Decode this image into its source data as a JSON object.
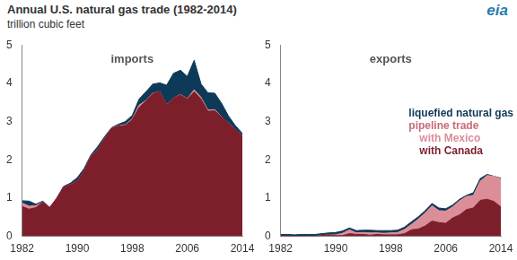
{
  "title": "Annual U.S. natural gas trade (1982-2014)",
  "subtitle": "trillion cubic feet",
  "logo": "eia",
  "legend_heading": "pipeline trade",
  "chart_data": [
    {
      "type": "area",
      "title": "imports",
      "stacked": true,
      "grid": false,
      "x": [
        1982,
        1983,
        1984,
        1985,
        1986,
        1987,
        1988,
        1989,
        1990,
        1991,
        1992,
        1993,
        1994,
        1995,
        1996,
        1997,
        1998,
        1999,
        2000,
        2001,
        2002,
        2003,
        2004,
        2005,
        2006,
        2007,
        2008,
        2009,
        2010,
        2011,
        2012,
        2013,
        2014
      ],
      "xlim": [
        1982,
        2014
      ],
      "xticks": [
        1982,
        1990,
        1998,
        2006,
        2014
      ],
      "ylim": [
        0,
        5
      ],
      "yticks": [
        0,
        1,
        2,
        3,
        4,
        5
      ],
      "series": [
        {
          "name": "with Canada",
          "color": "#7d1f2b",
          "values": [
            0.78,
            0.71,
            0.75,
            0.9,
            0.75,
            0.99,
            1.28,
            1.35,
            1.45,
            1.71,
            2.09,
            2.27,
            2.56,
            2.82,
            2.88,
            2.9,
            3.05,
            3.37,
            3.54,
            3.73,
            3.78,
            3.44,
            3.61,
            3.7,
            3.59,
            3.78,
            3.59,
            3.27,
            3.28,
            3.12,
            2.96,
            2.79,
            2.63
          ]
        },
        {
          "name": "with Mexico",
          "color": "#dc8e98",
          "values": [
            0.09,
            0.08,
            0.05,
            0,
            0,
            0,
            0,
            0,
            0,
            0,
            0,
            0,
            0,
            0,
            0.01,
            0.02,
            0.02,
            0.06,
            0.01,
            0.01,
            0,
            0,
            0,
            0.01,
            0.01,
            0.05,
            0.04,
            0.03,
            0.03,
            0,
            0,
            0,
            0
          ]
        },
        {
          "name": "liquefied natural gas",
          "color": "#0e3a5a",
          "values": [
            0.06,
            0.13,
            0.04,
            0.02,
            0,
            0,
            0.02,
            0.04,
            0.08,
            0.06,
            0.04,
            0.08,
            0.05,
            0.02,
            0.04,
            0.08,
            0.09,
            0.16,
            0.23,
            0.24,
            0.23,
            0.51,
            0.65,
            0.63,
            0.58,
            0.77,
            0.35,
            0.45,
            0.43,
            0.35,
            0.18,
            0.1,
            0.06
          ]
        }
      ]
    },
    {
      "type": "area",
      "title": "exports",
      "stacked": true,
      "grid": false,
      "legend": "top-right",
      "x": [
        1982,
        1983,
        1984,
        1985,
        1986,
        1987,
        1988,
        1989,
        1990,
        1991,
        1992,
        1993,
        1994,
        1995,
        1996,
        1997,
        1998,
        1999,
        2000,
        2001,
        2002,
        2003,
        2004,
        2005,
        2006,
        2007,
        2008,
        2009,
        2010,
        2011,
        2012,
        2013,
        2014
      ],
      "xlim": [
        1982,
        2014
      ],
      "xticks": [
        1982,
        1990,
        1998,
        2006,
        2014
      ],
      "ylim": [
        0,
        5
      ],
      "yticks": [
        0,
        1,
        2,
        3,
        4,
        5
      ],
      "series": [
        {
          "name": "with Canada",
          "color": "#7d1f2b",
          "values": [
            0,
            0,
            0,
            0,
            0,
            0,
            0.02,
            0.04,
            0.02,
            0.02,
            0.07,
            0.05,
            0.05,
            0.03,
            0.05,
            0.04,
            0.04,
            0.04,
            0.07,
            0.17,
            0.19,
            0.27,
            0.4,
            0.36,
            0.34,
            0.48,
            0.56,
            0.7,
            0.74,
            0.94,
            0.97,
            0.91,
            0.77
          ]
        },
        {
          "name": "with Mexico",
          "color": "#dc8e98",
          "values": [
            0,
            0,
            0,
            0,
            0,
            0,
            0,
            0,
            0.02,
            0.06,
            0.1,
            0.04,
            0.05,
            0.06,
            0.04,
            0.04,
            0.05,
            0.06,
            0.11,
            0.14,
            0.26,
            0.34,
            0.4,
            0.31,
            0.32,
            0.29,
            0.37,
            0.34,
            0.33,
            0.5,
            0.62,
            0.66,
            0.73
          ]
        },
        {
          "name": "liquefied natural gas",
          "color": "#0e3a5a",
          "values": [
            0.05,
            0.05,
            0.04,
            0.05,
            0.05,
            0.05,
            0.05,
            0.05,
            0.06,
            0.06,
            0.05,
            0.06,
            0.06,
            0.07,
            0.06,
            0.07,
            0.06,
            0.06,
            0.06,
            0.07,
            0.06,
            0.06,
            0.06,
            0.07,
            0.06,
            0.05,
            0.04,
            0.03,
            0.07,
            0.07,
            0.03,
            0,
            0.02
          ]
        }
      ]
    }
  ]
}
